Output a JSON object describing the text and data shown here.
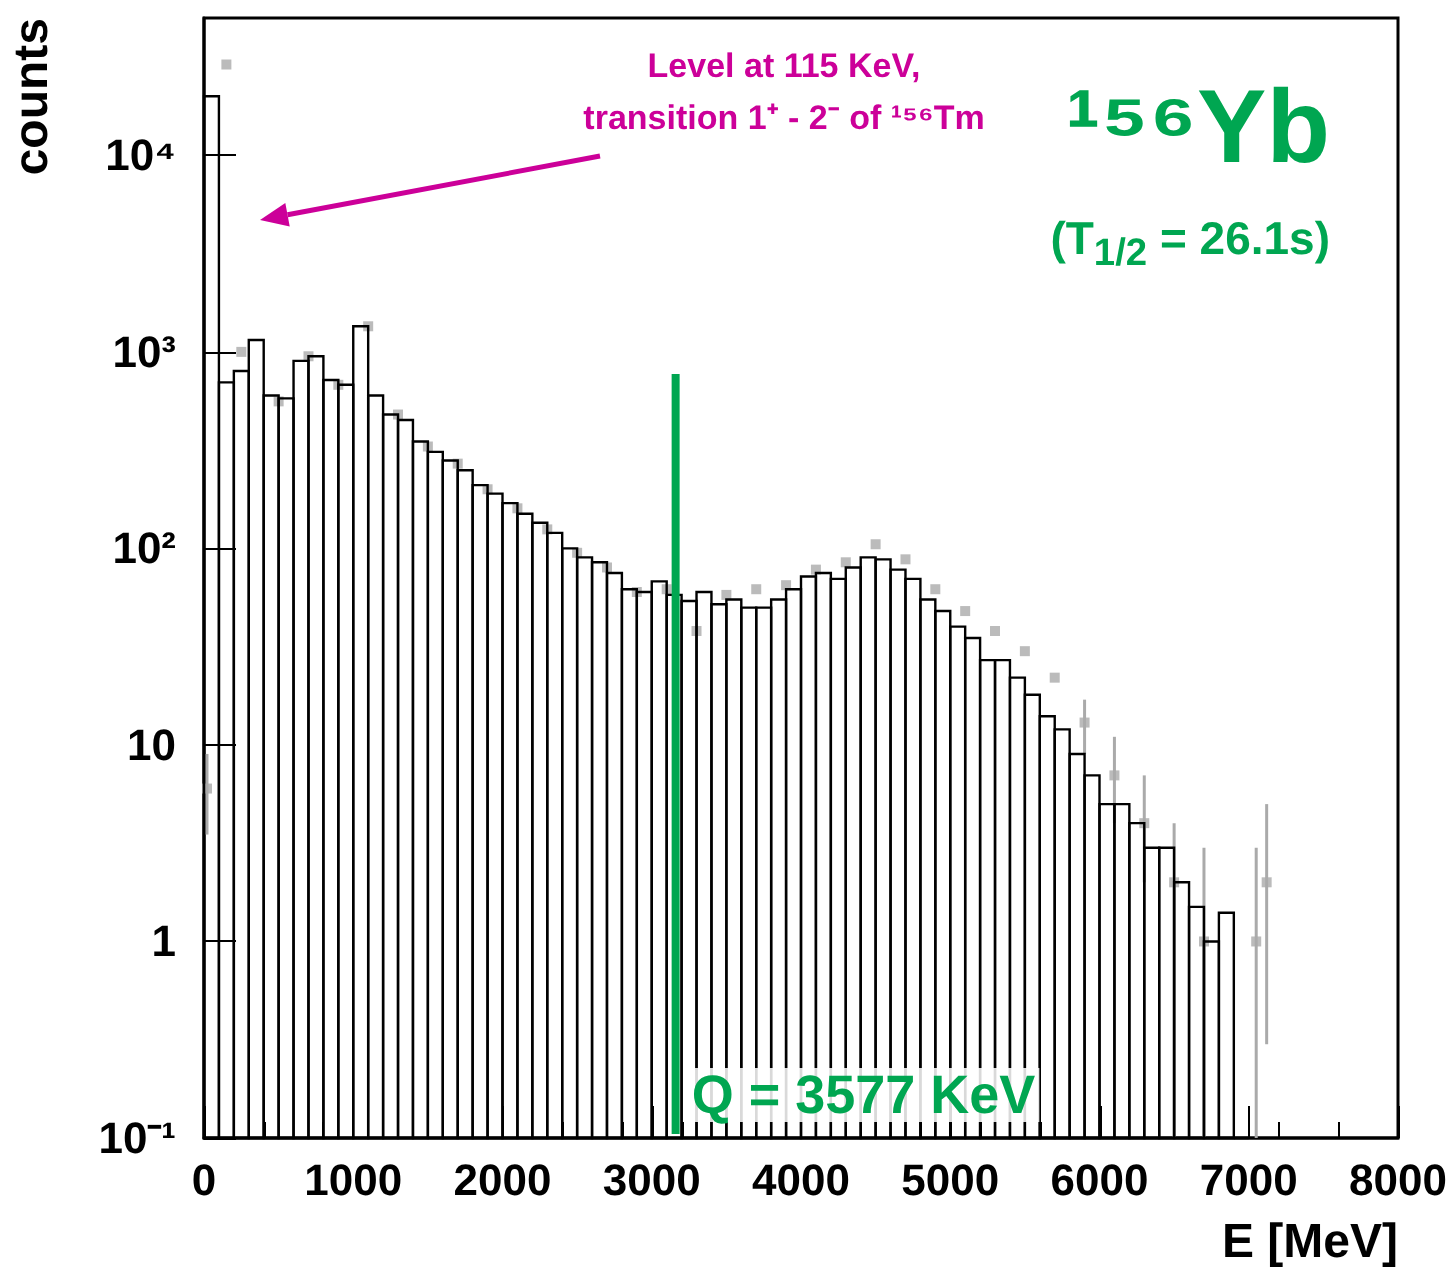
{
  "chart_data": {
    "type": "histogram",
    "title": "¹⁵⁶Yb",
    "subtitle": "(T$_{1/2}$ = 26.1s)",
    "xlabel": "E [MeV]",
    "ylabel": "counts",
    "annotations": [
      "Level at 115 KeV,\ntransition 1⁺ - 2⁻ of ¹⁵⁶Tm",
      "Q = 3577 KeV"
    ],
    "bins": [
      0,
      100,
      200,
      300,
      400,
      500,
      600,
      700,
      800,
      900,
      1000,
      1100,
      1200,
      1300,
      1400,
      1500,
      1600,
      1700,
      1800,
      1900,
      2000,
      2100,
      2200,
      2300,
      2400,
      2500,
      2600,
      2700,
      2800,
      2900,
      3000,
      3100,
      3200,
      3300,
      3400,
      3500,
      3600,
      3700,
      3800,
      3900,
      4000,
      4100,
      4200,
      4300,
      4400,
      4500,
      4600,
      4700,
      4800,
      4900,
      5000,
      5100,
      5200,
      5300,
      5400,
      5500,
      5600,
      5700,
      5800,
      5900,
      6000,
      6100,
      6200,
      6300,
      6400,
      6500,
      6600,
      6700,
      6800,
      6900,
      7000
    ],
    "series": [
      {
        "color": "#000000",
        "values": [
          20000,
          700,
          800,
          1150,
          600,
          580,
          900,
          950,
          720,
          680,
          1350,
          600,
          480,
          450,
          350,
          310,
          280,
          250,
          210,
          190,
          170,
          150,
          135,
          120,
          100,
          90,
          85,
          75,
          62,
          60,
          68,
          58,
          54,
          60,
          52,
          55,
          50,
          50,
          55,
          62,
          72,
          75,
          70,
          80,
          90,
          88,
          78,
          70,
          55,
          48,
          40,
          35,
          27,
          27,
          22,
          18,
          14,
          12,
          9,
          7,
          5,
          5,
          4,
          3,
          3,
          2,
          1.5,
          1,
          1.4,
          null
        ]
      },
      {
        "type": "scatter",
        "color": "#aaaaaa",
        "x": [
          20,
          150,
          250,
          500,
          700,
          900,
          1100,
          1300,
          1500,
          1700,
          1900,
          2100,
          2300,
          2500,
          2700,
          2900,
          3100,
          3300,
          3500,
          3700,
          3900,
          4100,
          4300,
          4500,
          4700,
          4900,
          5100,
          5300,
          5500,
          5700,
          5900,
          6100,
          6300,
          6500,
          6700,
          7050,
          7120
        ],
        "values": [
          6,
          29000,
          1000,
          560,
          950,
          680,
          1350,
          480,
          330,
          270,
          200,
          160,
          125,
          95,
          80,
          60,
          62,
          38,
          58,
          62,
          65,
          78,
          85,
          105,
          88,
          62,
          48,
          38,
          30,
          22,
          13,
          7,
          4,
          2,
          1,
          1,
          2
        ],
        "errors": [
          [
            3.5,
            9
          ],
          null,
          null,
          null,
          null,
          null,
          null,
          null,
          null,
          null,
          null,
          null,
          null,
          null,
          null,
          null,
          null,
          null,
          null,
          null,
          null,
          null,
          null,
          null,
          null,
          null,
          null,
          null,
          null,
          null,
          [
            9,
            17
          ],
          [
            4,
            11
          ],
          [
            2,
            7
          ],
          [
            0.1,
            4
          ],
          [
            0.1,
            3
          ],
          [
            0.1,
            3
          ],
          [
            0.3,
            5
          ]
        ]
      }
    ],
    "xlim": [
      0,
      8000
    ],
    "xticks": [
      0,
      1000,
      2000,
      3000,
      4000,
      5000,
      6000,
      7000,
      8000
    ],
    "ylim": [
      0.1,
      50000
    ],
    "yticks": [
      {
        "value": 0.1,
        "label": "10⁻¹"
      },
      1,
      10,
      {
        "value": 100,
        "label": "10²"
      },
      {
        "value": 1000,
        "label": "10³"
      },
      {
        "value": 10000,
        "label": "10⁴"
      }
    ],
    "log": "y",
    "grid": false,
    "marker": "square",
    "ref_lines": [
      {
        "axis": "x",
        "value": 3160,
        "color": "#00a651"
      }
    ]
  }
}
